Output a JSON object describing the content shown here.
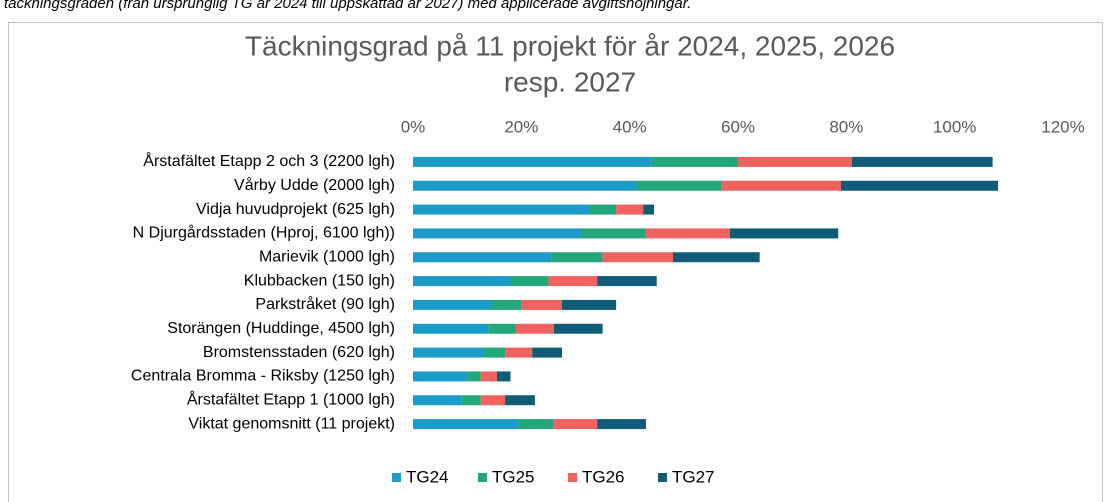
{
  "caption": "täckningsgraden (från ursprunglig TG år 2024 till uppskattad år 2027) med applicerade avgiftshöjningar.",
  "chart_data": {
    "type": "stacked-bar-horizontal",
    "title": [
      "Täckningsgrad på 11 projekt för år 2024, 2025, 2026",
      "resp. 2027"
    ],
    "categories": [
      "Årstafältet Etapp 2 och 3 (2200 lgh)",
      "Vårby Udde (2000 lgh)",
      "Vidja huvudprojekt (625 lgh)",
      "N Djurgårdsstaden (Hproj, 6100 lgh))",
      "Marievik (1000 lgh)",
      "Klubbacken (150 lgh)",
      "Parkstråket (90 lgh)",
      "Storängen (Huddinge, 4500 lgh)",
      "Bromstensstaden (620 lgh)",
      "Centrala Bromma - Riksby (1250 lgh)",
      "Årstafältet Etapp 1 (1000 lgh)",
      "Viktat genomsnitt (11 projekt)"
    ],
    "series": [
      {
        "name": "TG24",
        "color": "#1b9bc8",
        "values": [
          44,
          41,
          32.5,
          31,
          25.5,
          18,
          14.5,
          14,
          13,
          10,
          9,
          19.5
        ]
      },
      {
        "name": "TG25",
        "color": "#22a67a",
        "values": [
          16,
          16,
          5,
          12,
          9.5,
          7,
          5.5,
          5,
          4,
          2.5,
          3.5,
          6.5
        ]
      },
      {
        "name": "TG26",
        "color": "#ef625f",
        "values": [
          21,
          22,
          5,
          15.5,
          13,
          9,
          7.5,
          7,
          5,
          3,
          4.5,
          8
        ]
      },
      {
        "name": "TG27",
        "color": "#0f5b78",
        "values": [
          26,
          29,
          2,
          20,
          16,
          11,
          10,
          9,
          5.5,
          2.5,
          5.5,
          9
        ]
      }
    ],
    "xlim": [
      0,
      120
    ],
    "xticks": [
      {
        "value": 0,
        "label": "0%"
      },
      {
        "value": 20,
        "label": "20%"
      },
      {
        "value": 40,
        "label": "40%"
      },
      {
        "value": 60,
        "label": "60%"
      },
      {
        "value": 80,
        "label": "80%"
      },
      {
        "value": 100,
        "label": "100%"
      },
      {
        "value": 120,
        "label": "120%"
      }
    ],
    "grid": false,
    "legend": "bottom"
  }
}
